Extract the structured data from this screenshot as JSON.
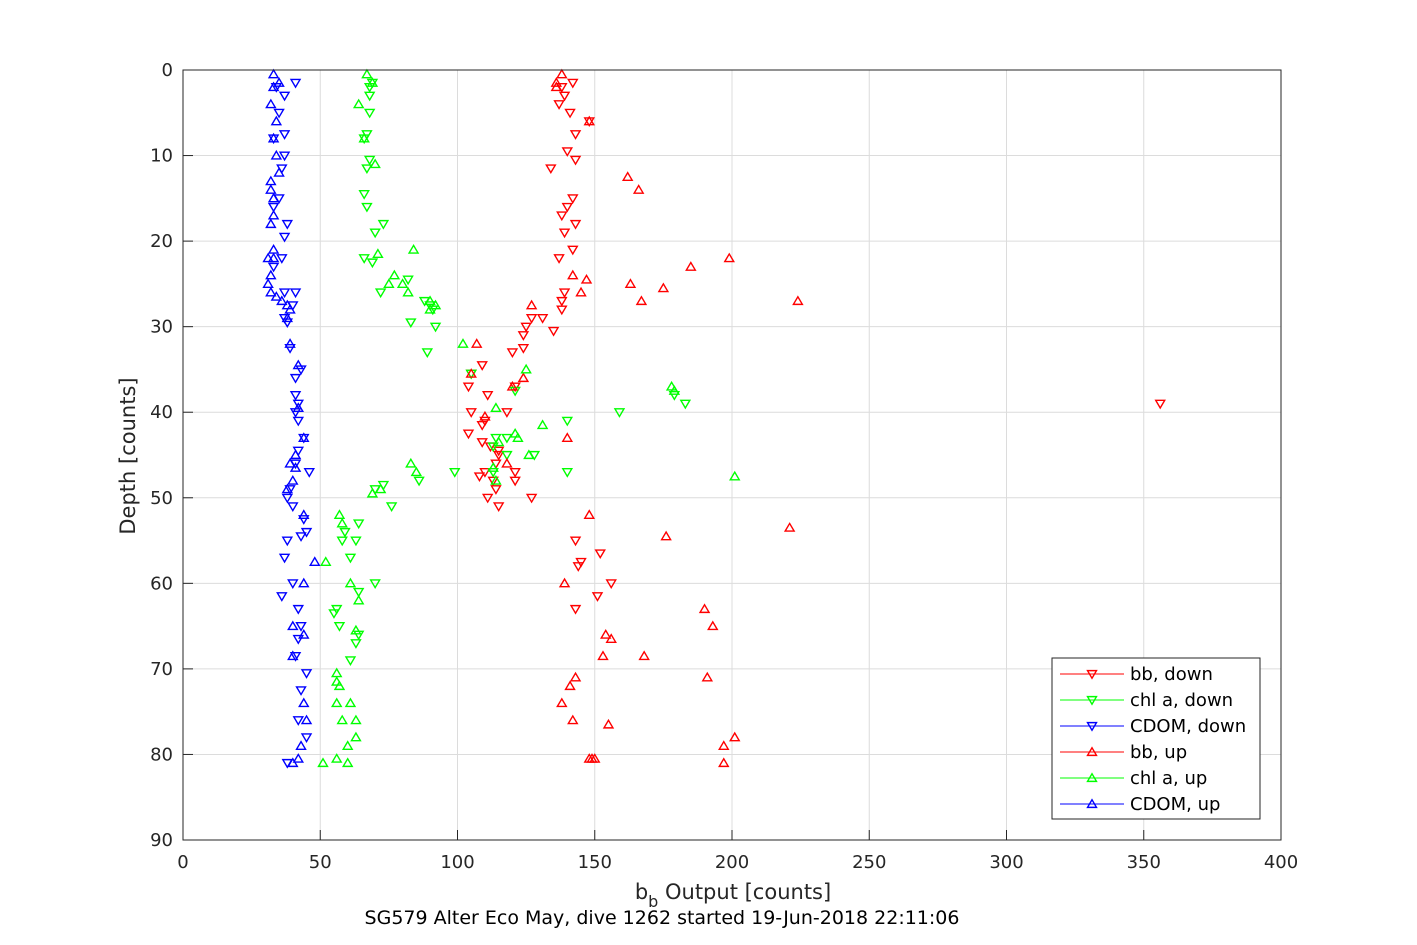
{
  "chart_data": {
    "type": "scatter",
    "title": "",
    "xlabel": "b",
    "xlabel_sub": "b",
    "xlabel_rest": " Output [counts]",
    "ylabel": "Depth [counts]",
    "caption": "SG579 Alter Eco May, dive 1262 started 19-Jun-2018 22:11:06",
    "xlim": [
      0,
      400
    ],
    "ylim": [
      0,
      90
    ],
    "y_reversed": true,
    "grid": true,
    "legend_position": "lower-right",
    "x_ticks": [
      0,
      50,
      100,
      150,
      200,
      250,
      300,
      350,
      400
    ],
    "y_ticks": [
      0,
      10,
      20,
      30,
      40,
      50,
      60,
      70,
      80,
      90
    ],
    "series": [
      {
        "name": "bb, down",
        "color": "#ff0000",
        "marker": "triangle-down",
        "points": [
          [
            142,
            1.5
          ],
          [
            138,
            2
          ],
          [
            139,
            3
          ],
          [
            137,
            4
          ],
          [
            141,
            5
          ],
          [
            148,
            6
          ],
          [
            143,
            7.5
          ],
          [
            140,
            9.5
          ],
          [
            143,
            10.5
          ],
          [
            134,
            11.5
          ],
          [
            142,
            15
          ],
          [
            140,
            16
          ],
          [
            138,
            17
          ],
          [
            143,
            18
          ],
          [
            139,
            19
          ],
          [
            142,
            21
          ],
          [
            137,
            22
          ],
          [
            139,
            26
          ],
          [
            138,
            27
          ],
          [
            138,
            28
          ],
          [
            127,
            29
          ],
          [
            131,
            29
          ],
          [
            125,
            30
          ],
          [
            124,
            31
          ],
          [
            120,
            33
          ],
          [
            109,
            34.5
          ],
          [
            105,
            35.5
          ],
          [
            121,
            37
          ],
          [
            104,
            37
          ],
          [
            111,
            38
          ],
          [
            118,
            40
          ],
          [
            105,
            40
          ],
          [
            110,
            41
          ],
          [
            109,
            41.5
          ],
          [
            104,
            42.5
          ],
          [
            109,
            43.5
          ],
          [
            112,
            44
          ],
          [
            115,
            44.5
          ],
          [
            115,
            45
          ],
          [
            114,
            46
          ],
          [
            110,
            47
          ],
          [
            121,
            47
          ],
          [
            108,
            47.5
          ],
          [
            113,
            48
          ],
          [
            121,
            48
          ],
          [
            114,
            49
          ],
          [
            111,
            50
          ],
          [
            127,
            50
          ],
          [
            115,
            51
          ],
          [
            143,
            55
          ],
          [
            152,
            56.5
          ],
          [
            145,
            57.5
          ],
          [
            144,
            58
          ],
          [
            156,
            60
          ],
          [
            151,
            61.5
          ],
          [
            143,
            63
          ],
          [
            356,
            39
          ],
          [
            135,
            30.5
          ],
          [
            124,
            32.5
          ]
        ]
      },
      {
        "name": "chl a, down",
        "color": "#00ff00",
        "marker": "triangle-down",
        "points": [
          [
            69,
            1.5
          ],
          [
            68,
            2
          ],
          [
            68,
            3
          ],
          [
            68,
            5
          ],
          [
            67,
            7.5
          ],
          [
            66,
            8
          ],
          [
            68,
            10.5
          ],
          [
            67,
            11.5
          ],
          [
            66,
            14.5
          ],
          [
            67,
            16
          ],
          [
            73,
            18
          ],
          [
            70,
            19
          ],
          [
            66,
            22
          ],
          [
            69,
            22.5
          ],
          [
            82,
            24.5
          ],
          [
            72,
            26
          ],
          [
            88,
            27
          ],
          [
            90,
            27.5
          ],
          [
            91,
            28
          ],
          [
            83,
            29.5
          ],
          [
            92,
            30
          ],
          [
            89,
            33
          ],
          [
            105,
            35.5
          ],
          [
            121,
            37.5
          ],
          [
            179,
            38
          ],
          [
            183,
            39
          ],
          [
            159,
            40
          ],
          [
            140,
            41
          ],
          [
            114,
            43
          ],
          [
            118,
            43
          ],
          [
            113,
            44
          ],
          [
            118,
            45
          ],
          [
            128,
            45
          ],
          [
            113,
            47
          ],
          [
            140,
            47
          ],
          [
            99,
            47
          ],
          [
            86,
            48
          ],
          [
            73,
            48.5
          ],
          [
            70,
            49
          ],
          [
            76,
            51
          ],
          [
            64,
            53
          ],
          [
            59,
            54
          ],
          [
            63,
            55
          ],
          [
            58,
            55
          ],
          [
            61,
            57
          ],
          [
            70,
            60
          ],
          [
            56,
            63
          ],
          [
            55,
            63.5
          ],
          [
            64,
            61
          ],
          [
            57,
            65
          ],
          [
            64,
            66
          ],
          [
            63,
            67
          ],
          [
            61,
            69
          ]
        ]
      },
      {
        "name": "CDOM, down",
        "color": "#0000ff",
        "marker": "triangle-down",
        "points": [
          [
            41,
            1.5
          ],
          [
            34,
            2
          ],
          [
            37,
            3
          ],
          [
            35,
            5
          ],
          [
            37,
            7.5
          ],
          [
            33,
            8
          ],
          [
            37,
            10
          ],
          [
            36,
            11.5
          ],
          [
            35,
            15
          ],
          [
            33,
            16
          ],
          [
            38,
            18
          ],
          [
            37,
            19.5
          ],
          [
            36,
            22
          ],
          [
            33,
            23
          ],
          [
            37,
            26
          ],
          [
            41,
            26
          ],
          [
            40,
            27.5
          ],
          [
            37,
            29
          ],
          [
            38,
            29.5
          ],
          [
            39,
            32.5
          ],
          [
            43,
            35
          ],
          [
            41,
            36
          ],
          [
            41,
            38
          ],
          [
            42,
            39
          ],
          [
            41,
            40
          ],
          [
            42,
            41
          ],
          [
            44,
            43
          ],
          [
            42,
            44.5
          ],
          [
            41,
            46
          ],
          [
            46,
            47
          ],
          [
            39,
            49
          ],
          [
            38,
            50
          ],
          [
            40,
            51
          ],
          [
            44,
            52.5
          ],
          [
            45,
            54
          ],
          [
            43,
            54.5
          ],
          [
            38,
            55
          ],
          [
            37,
            57
          ],
          [
            40,
            60
          ],
          [
            36,
            61.5
          ],
          [
            42,
            63
          ],
          [
            43,
            65
          ],
          [
            42,
            66.5
          ],
          [
            41,
            68.5
          ],
          [
            45,
            70.5
          ],
          [
            43,
            72.5
          ],
          [
            42,
            76
          ],
          [
            45,
            78
          ],
          [
            38,
            81
          ]
        ]
      },
      {
        "name": "bb, up",
        "color": "#ff0000",
        "marker": "triangle-up",
        "points": [
          [
            138,
            0.5
          ],
          [
            136,
            1.5
          ],
          [
            136,
            2
          ],
          [
            148,
            6
          ],
          [
            162,
            12.5
          ],
          [
            166,
            14
          ],
          [
            199,
            22
          ],
          [
            185,
            23
          ],
          [
            142,
            24
          ],
          [
            147,
            24.5
          ],
          [
            163,
            25
          ],
          [
            175,
            25.5
          ],
          [
            145,
            26
          ],
          [
            167,
            27
          ],
          [
            224,
            27
          ],
          [
            127,
            27.5
          ],
          [
            107,
            32
          ],
          [
            120,
            37
          ],
          [
            124,
            36
          ],
          [
            105,
            35.5
          ],
          [
            110,
            40.5
          ],
          [
            140,
            43
          ],
          [
            118,
            46
          ],
          [
            221,
            53.5
          ],
          [
            176,
            54.5
          ],
          [
            148,
            52
          ],
          [
            139,
            60
          ],
          [
            190,
            63
          ],
          [
            193,
            65
          ],
          [
            154,
            66
          ],
          [
            156,
            66.5
          ],
          [
            153,
            68.5
          ],
          [
            168,
            68.5
          ],
          [
            191,
            71
          ],
          [
            143,
            71
          ],
          [
            141,
            72
          ],
          [
            138,
            74
          ],
          [
            142,
            76
          ],
          [
            155,
            76.5
          ],
          [
            201,
            78
          ],
          [
            197,
            79
          ],
          [
            149,
            80.5
          ],
          [
            150,
            80.5
          ],
          [
            148,
            80.5
          ],
          [
            197,
            81
          ]
        ]
      },
      {
        "name": "chl a, up",
        "color": "#00ff00",
        "marker": "triangle-up",
        "points": [
          [
            67,
            0.5
          ],
          [
            69,
            1.5
          ],
          [
            64,
            4
          ],
          [
            66,
            8
          ],
          [
            70,
            11
          ],
          [
            84,
            21
          ],
          [
            71,
            21.5
          ],
          [
            77,
            24
          ],
          [
            75,
            25
          ],
          [
            80,
            25
          ],
          [
            82,
            26
          ],
          [
            90,
            27
          ],
          [
            92,
            27.5
          ],
          [
            90,
            28
          ],
          [
            102,
            32
          ],
          [
            125,
            35
          ],
          [
            178,
            37
          ],
          [
            179,
            37.5
          ],
          [
            131,
            41.5
          ],
          [
            114,
            39.5
          ],
          [
            121,
            42.5
          ],
          [
            122,
            43
          ],
          [
            115,
            43.5
          ],
          [
            126,
            45
          ],
          [
            113,
            46.5
          ],
          [
            114,
            48
          ],
          [
            201,
            47.5
          ],
          [
            83,
            46
          ],
          [
            85,
            47
          ],
          [
            72,
            49
          ],
          [
            69,
            49.5
          ],
          [
            57,
            52
          ],
          [
            58,
            53
          ],
          [
            52,
            57.5
          ],
          [
            61,
            60
          ],
          [
            64,
            62
          ],
          [
            63,
            65.5
          ],
          [
            56,
            70.5
          ],
          [
            56,
            71.5
          ],
          [
            57,
            72
          ],
          [
            56,
            74
          ],
          [
            61,
            74
          ],
          [
            58,
            76
          ],
          [
            63,
            76
          ],
          [
            60,
            79
          ],
          [
            51,
            81
          ],
          [
            56,
            80.5
          ],
          [
            60,
            81
          ],
          [
            63,
            78
          ]
        ]
      },
      {
        "name": "CDOM, up",
        "color": "#0000ff",
        "marker": "triangle-up",
        "points": [
          [
            33,
            0.5
          ],
          [
            35,
            1.5
          ],
          [
            33,
            2
          ],
          [
            32,
            4
          ],
          [
            34,
            6
          ],
          [
            33,
            8
          ],
          [
            34,
            10
          ],
          [
            35,
            12
          ],
          [
            32,
            13
          ],
          [
            32,
            14
          ],
          [
            33,
            15
          ],
          [
            33,
            17
          ],
          [
            32,
            18
          ],
          [
            33,
            21
          ],
          [
            33,
            22
          ],
          [
            31,
            22
          ],
          [
            32,
            24
          ],
          [
            31,
            25
          ],
          [
            32,
            26
          ],
          [
            34,
            26.5
          ],
          [
            36,
            27
          ],
          [
            38,
            27.5
          ],
          [
            39,
            28
          ],
          [
            38,
            29
          ],
          [
            39,
            32
          ],
          [
            42,
            34.5
          ],
          [
            42,
            39.5
          ],
          [
            44,
            43
          ],
          [
            41,
            45
          ],
          [
            39,
            46
          ],
          [
            41,
            46.5
          ],
          [
            40,
            48
          ],
          [
            38,
            49
          ],
          [
            44,
            52
          ],
          [
            48,
            57.5
          ],
          [
            44,
            60
          ],
          [
            40,
            65
          ],
          [
            44,
            66
          ],
          [
            40,
            68.5
          ],
          [
            44,
            74
          ],
          [
            45,
            76
          ],
          [
            43,
            79
          ],
          [
            42,
            80.5
          ],
          [
            40,
            81
          ]
        ]
      }
    ]
  }
}
